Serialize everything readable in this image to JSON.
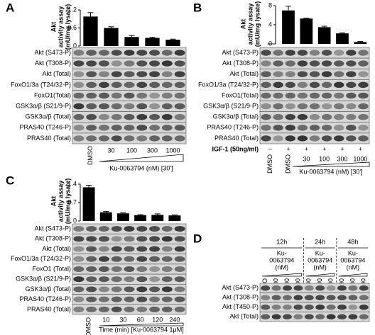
{
  "panels": [
    {
      "letter": "A",
      "chart": {
        "type": "bar",
        "ylabel": [
          "Akt",
          "activity assay",
          "(mU/mg lysate)"
        ],
        "categories": [
          "DMSO",
          "30",
          "100",
          "300",
          "1000"
        ],
        "values": [
          0.98,
          0.6,
          0.3,
          0.27,
          0.21
        ],
        "errors": [
          0.13,
          0.04,
          0.05,
          0.02,
          0.02
        ],
        "color": "#000000",
        "ylim": [
          0,
          1.2
        ],
        "yticks": [
          0,
          0.6,
          1.2
        ]
      },
      "xlabel": "Ku-0063794 (nM) [30']",
      "blots": [
        "Akt (S473-P)",
        "Akt (T308-P)",
        "Akt (Total)",
        "FoxO1/3a (T24/32-P)",
        "FoxO1(Total)",
        "GSK3α/β (S21/9-P)",
        "GSK3α/β (Total)",
        "PRAS40 (T246-P)",
        "PRAS40 (Total)"
      ]
    },
    {
      "letter": "B",
      "chart": {
        "type": "bar",
        "ylabel": [
          "Akt",
          "activity assay",
          "(mU/mg lysate)"
        ],
        "categories": [
          "DMSO",
          "DMSO",
          "30",
          "100",
          "300",
          "1000"
        ],
        "values": [
          0,
          7,
          5.3,
          3.5,
          2.2,
          0.4
        ],
        "errors": [
          0,
          0.9,
          0.1,
          0.2,
          0.1,
          0.1
        ],
        "color": "#000000",
        "ylim": [
          0,
          8
        ],
        "yticks": [
          0,
          4,
          8
        ]
      },
      "treatment": {
        "label": "IGF-1 (50ng/ml)",
        "signs": [
          "−",
          "+",
          "+",
          "+",
          "+",
          "+"
        ]
      },
      "xlabel": "Ku-0063794 (nM) [30']",
      "blots": [
        "Akt (S473-P)",
        "Akt (T308-P)",
        "Akt (Total)",
        "FoxO1/3a (T24/32-P)",
        "FoxO1(Total)",
        "GSK3α/β (S21/9-P)",
        "GSK3α/β (Total)",
        "PRAS40 (T246-P)",
        "PRAS40 (Total)"
      ]
    },
    {
      "letter": "C",
      "chart": {
        "type": "bar",
        "ylabel": [
          "Akt",
          "activity assay",
          "(mU/mg lysate)"
        ],
        "categories": [
          "DMSO",
          "10",
          "30",
          "60",
          "120",
          "240"
        ],
        "values": [
          1.28,
          0.33,
          0.29,
          0.22,
          0.23,
          0.21
        ],
        "errors": [
          0.08,
          0.03,
          0.02,
          0.02,
          0.04,
          0.02
        ],
        "color": "#000000",
        "ylim": [
          0,
          1.4
        ],
        "yticks": [
          0,
          0.7,
          1.4
        ]
      },
      "xlabel": "Time (min) [Ku-0063794 1μM]",
      "blots": [
        "Akt (S473-P)",
        "Akt (T308-P)",
        "Akt (Total)",
        "FoxO1/3a (T24/32-P)",
        "FoxO1 (Total)",
        "GSK3α/β (S21/9-P)",
        "GSK3α/β (Total)",
        "PRAS40 (T246-P)",
        "PRAS40 (Total)"
      ]
    },
    {
      "letter": "D",
      "groups": [
        {
          "time": "12h",
          "label": [
            "Ku-",
            "0063794",
            "(nM)"
          ],
          "lanes": [
            "DMSO",
            "100",
            "300",
            "1000"
          ]
        },
        {
          "time": "24h",
          "label": [
            "Ku-",
            "0063794",
            "(nM)"
          ],
          "lanes": [
            "100",
            "300",
            "1000"
          ]
        },
        {
          "time": "48h",
          "label": [
            "Ku-",
            "0063794",
            "(nM)"
          ],
          "lanes": [
            "100",
            "300",
            "1000"
          ]
        }
      ],
      "blots": [
        "Akt (S473-P)",
        "Akt (T308-P)",
        "Akt (T450-P)",
        "Akt (Total)"
      ]
    }
  ]
}
